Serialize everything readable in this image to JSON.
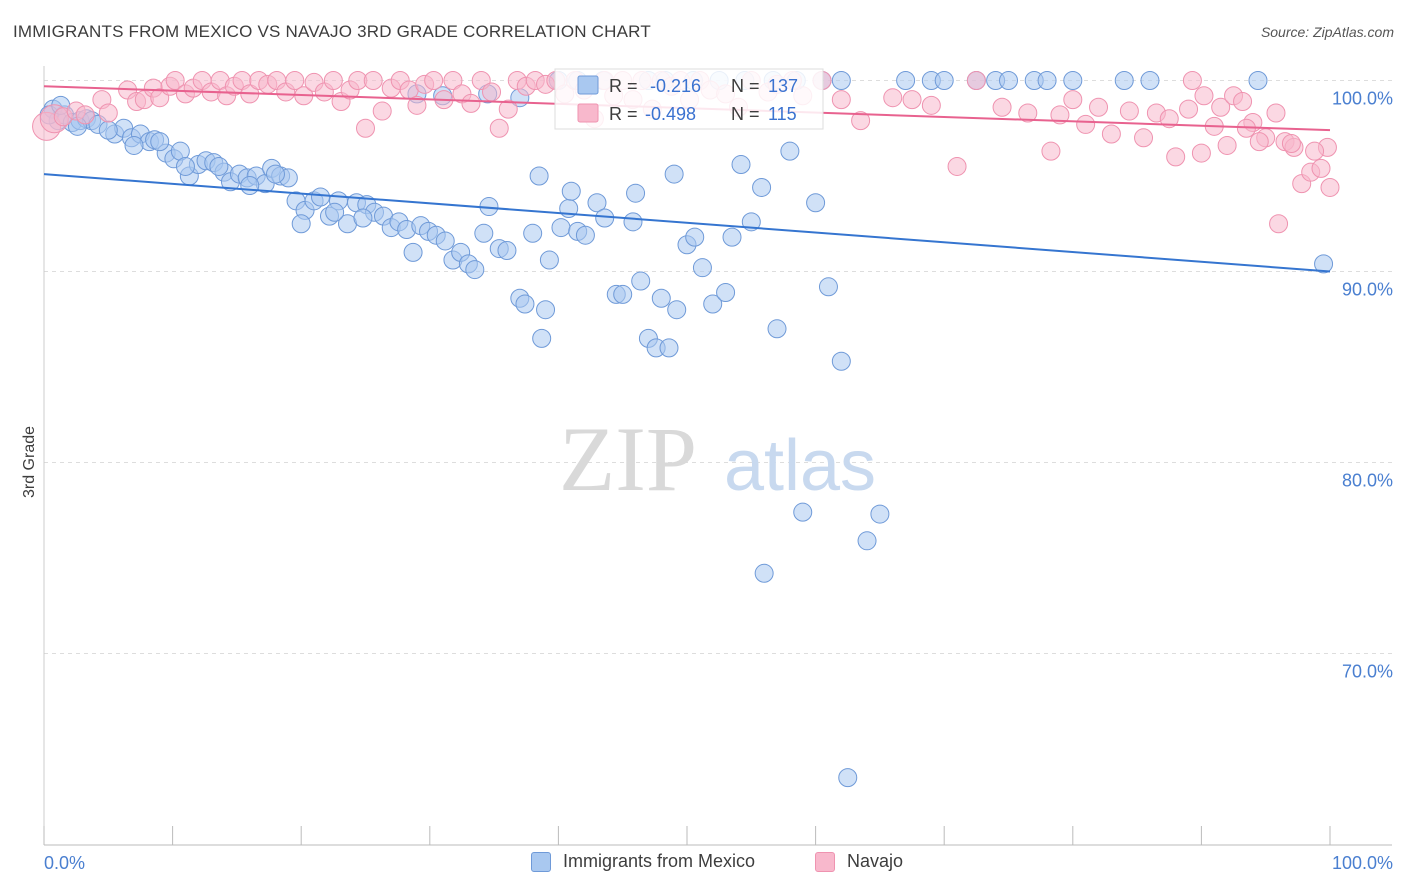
{
  "title": "IMMIGRANTS FROM MEXICO VS NAVAJO 3RD GRADE CORRELATION CHART",
  "source": "Source: ZipAtlas.com",
  "watermark": {
    "zip": "ZIP",
    "atlas": "atlas"
  },
  "colors": {
    "blue_fill": "#a9c8f0",
    "blue_stroke": "#6f9ad8",
    "blue_line": "#3575d0",
    "pink_fill": "#f8b8cc",
    "pink_stroke": "#ef93b0",
    "pink_line": "#e8628f",
    "axis_label": "#4a7fd0",
    "grid": "#dddddd"
  },
  "stats": {
    "series1": {
      "r_label": "R =",
      "r_value": "-0.216",
      "n_label": "N =",
      "n_value": "137"
    },
    "series2": {
      "r_label": "R =",
      "r_value": "-0.498",
      "n_label": "N =",
      "n_value": "115"
    }
  },
  "legend": {
    "series1": "Immigrants from Mexico",
    "series2": "Navajo"
  },
  "chart_data": {
    "type": "scatter",
    "title": "IMMIGRANTS FROM MEXICO VS NAVAJO 3RD GRADE CORRELATION CHART",
    "xlabel": "",
    "ylabel": "3rd Grade",
    "xlim": [
      0,
      100
    ],
    "ylim": [
      61.5,
      102.2
    ],
    "x_tick_labels": [
      {
        "value": 0,
        "label": "0.0%"
      },
      {
        "value": 100,
        "label": "100.0%"
      }
    ],
    "y_ticks": [
      {
        "value": 100,
        "label": "100.0%"
      },
      {
        "value": 90,
        "label": "90.0%"
      },
      {
        "value": 80,
        "label": "80.0%"
      },
      {
        "value": 70,
        "label": "70.0%"
      }
    ],
    "grid": "horizontal dashed",
    "legend_position": "bottom-center",
    "series": [
      {
        "name": "Immigrants from Mexico",
        "trend": {
          "x": [
            0,
            100
          ],
          "y": [
            95.1,
            90.0
          ]
        },
        "points": [
          [
            0.7,
            98.5
          ],
          [
            1.1,
            97.9
          ],
          [
            1.6,
            98.2
          ],
          [
            2.2,
            97.8
          ],
          [
            2.8,
            97.9
          ],
          [
            3.3,
            98.0
          ],
          [
            3.7,
            97.9
          ],
          [
            4.2,
            97.7
          ],
          [
            5.5,
            97.2
          ],
          [
            6.2,
            97.5
          ],
          [
            6.8,
            97.0
          ],
          [
            7.5,
            97.2
          ],
          [
            8.2,
            96.8
          ],
          [
            8.6,
            96.9
          ],
          [
            9.5,
            96.2
          ],
          [
            10.1,
            95.9
          ],
          [
            10.6,
            96.3
          ],
          [
            11.3,
            95.0
          ],
          [
            12.0,
            95.6
          ],
          [
            12.6,
            95.8
          ],
          [
            13.2,
            95.7
          ],
          [
            14.0,
            95.2
          ],
          [
            14.5,
            94.7
          ],
          [
            15.2,
            95.1
          ],
          [
            15.8,
            94.9
          ],
          [
            16.5,
            95.0
          ],
          [
            17.2,
            94.6
          ],
          [
            17.7,
            95.4
          ],
          [
            18.4,
            95.0
          ],
          [
            19.0,
            94.9
          ],
          [
            19.6,
            93.7
          ],
          [
            20.3,
            93.2
          ],
          [
            21.0,
            93.7
          ],
          [
            21.5,
            93.9
          ],
          [
            22.2,
            92.9
          ],
          [
            22.9,
            93.7
          ],
          [
            23.6,
            92.5
          ],
          [
            24.3,
            93.6
          ],
          [
            25.1,
            93.5
          ],
          [
            25.7,
            93.1
          ],
          [
            26.4,
            92.9
          ],
          [
            27.0,
            92.3
          ],
          [
            27.6,
            92.6
          ],
          [
            28.2,
            92.2
          ],
          [
            28.7,
            91.0
          ],
          [
            29.3,
            92.4
          ],
          [
            29.9,
            92.1
          ],
          [
            30.5,
            91.9
          ],
          [
            31.2,
            91.6
          ],
          [
            31.8,
            90.6
          ],
          [
            32.4,
            91.0
          ],
          [
            33.0,
            90.4
          ],
          [
            33.5,
            90.1
          ],
          [
            34.2,
            92.0
          ],
          [
            34.6,
            93.4
          ],
          [
            35.4,
            91.2
          ],
          [
            36.0,
            91.1
          ],
          [
            37.0,
            88.6
          ],
          [
            37.4,
            88.3
          ],
          [
            38.0,
            92.0
          ],
          [
            38.7,
            86.5
          ],
          [
            39.3,
            90.6
          ],
          [
            40.2,
            92.3
          ],
          [
            40.8,
            93.3
          ],
          [
            41.5,
            92.1
          ],
          [
            42.1,
            91.9
          ],
          [
            43.0,
            93.6
          ],
          [
            43.6,
            92.8
          ],
          [
            44.5,
            88.8
          ],
          [
            45.0,
            88.8
          ],
          [
            45.8,
            92.6
          ],
          [
            46.4,
            89.5
          ],
          [
            47.0,
            86.5
          ],
          [
            47.6,
            86.0
          ],
          [
            48.0,
            88.6
          ],
          [
            49.0,
            95.1
          ],
          [
            50.0,
            91.4
          ],
          [
            50.6,
            91.8
          ],
          [
            51.2,
            90.2
          ],
          [
            52.0,
            88.3
          ],
          [
            53.0,
            88.9
          ],
          [
            53.5,
            91.8
          ],
          [
            54.2,
            95.6
          ],
          [
            55.0,
            92.6
          ],
          [
            55.8,
            94.4
          ],
          [
            57.0,
            87.0
          ],
          [
            56.0,
            74.2
          ],
          [
            59.0,
            77.4
          ],
          [
            61.0,
            89.2
          ],
          [
            62.0,
            85.3
          ],
          [
            62.5,
            63.5
          ],
          [
            64.0,
            75.9
          ],
          [
            65.0,
            77.3
          ],
          [
            39.0,
            88.0
          ],
          [
            48.6,
            86.0
          ],
          [
            38.5,
            95.0
          ],
          [
            41.0,
            94.2
          ],
          [
            46.0,
            94.1
          ],
          [
            49.2,
            88.0
          ],
          [
            58.0,
            96.3
          ],
          [
            60.0,
            93.6
          ],
          [
            29.0,
            99.3
          ],
          [
            31.0,
            99.2
          ],
          [
            34.5,
            99.3
          ],
          [
            37.0,
            99.1
          ],
          [
            40.0,
            100.0
          ],
          [
            41.5,
            100.0
          ],
          [
            43.5,
            100.0
          ],
          [
            47.0,
            100.0
          ],
          [
            48.3,
            100.0
          ],
          [
            50.5,
            100.0
          ],
          [
            52.5,
            100.0
          ],
          [
            54.5,
            100.0
          ],
          [
            56.7,
            100.0
          ],
          [
            58.5,
            100.0
          ],
          [
            60.5,
            100.0
          ],
          [
            62.0,
            100.0
          ],
          [
            67.0,
            100.0
          ],
          [
            69.0,
            100.0
          ],
          [
            70.0,
            100.0
          ],
          [
            72.5,
            100.0
          ],
          [
            74.0,
            100.0
          ],
          [
            75.0,
            100.0
          ],
          [
            77.0,
            100.0
          ],
          [
            78.0,
            100.0
          ],
          [
            80.0,
            100.0
          ],
          [
            84.0,
            100.0
          ],
          [
            86.0,
            100.0
          ],
          [
            94.4,
            100.0
          ],
          [
            99.5,
            90.4
          ],
          [
            0.4,
            98.2
          ],
          [
            1.3,
            98.7
          ],
          [
            2.6,
            97.6
          ],
          [
            5.0,
            97.4
          ],
          [
            7.0,
            96.6
          ],
          [
            9.0,
            96.8
          ],
          [
            11.0,
            95.5
          ],
          [
            13.6,
            95.5
          ],
          [
            16.0,
            94.5
          ],
          [
            18.0,
            95.1
          ],
          [
            20.0,
            92.5
          ],
          [
            22.6,
            93.1
          ],
          [
            24.8,
            92.8
          ]
        ]
      },
      {
        "name": "Navajo",
        "trend": {
          "x": [
            0,
            100
          ],
          "y": [
            99.7,
            97.4
          ]
        },
        "points": [
          [
            0.2,
            97.6
          ],
          [
            0.8,
            98.0
          ],
          [
            1.5,
            98.1
          ],
          [
            2.5,
            98.4
          ],
          [
            3.2,
            98.2
          ],
          [
            4.5,
            99.0
          ],
          [
            5.0,
            98.3
          ],
          [
            6.5,
            99.5
          ],
          [
            7.2,
            98.9
          ],
          [
            7.8,
            99.0
          ],
          [
            8.5,
            99.6
          ],
          [
            9.0,
            99.1
          ],
          [
            9.8,
            99.7
          ],
          [
            10.2,
            100.0
          ],
          [
            11.0,
            99.3
          ],
          [
            11.6,
            99.6
          ],
          [
            12.3,
            100.0
          ],
          [
            13.0,
            99.4
          ],
          [
            13.7,
            100.0
          ],
          [
            14.2,
            99.2
          ],
          [
            14.8,
            99.7
          ],
          [
            15.4,
            100.0
          ],
          [
            16.0,
            99.3
          ],
          [
            16.7,
            100.0
          ],
          [
            17.4,
            99.8
          ],
          [
            18.1,
            100.0
          ],
          [
            18.8,
            99.4
          ],
          [
            19.5,
            100.0
          ],
          [
            20.2,
            99.2
          ],
          [
            21.0,
            99.9
          ],
          [
            21.8,
            99.4
          ],
          [
            22.5,
            100.0
          ],
          [
            23.1,
            98.9
          ],
          [
            23.8,
            99.5
          ],
          [
            24.4,
            100.0
          ],
          [
            25.0,
            97.5
          ],
          [
            25.6,
            100.0
          ],
          [
            26.3,
            98.4
          ],
          [
            27.0,
            99.6
          ],
          [
            27.7,
            100.0
          ],
          [
            28.4,
            99.5
          ],
          [
            29.0,
            98.7
          ],
          [
            29.6,
            99.8
          ],
          [
            30.3,
            100.0
          ],
          [
            31.1,
            99.0
          ],
          [
            31.8,
            100.0
          ],
          [
            32.5,
            99.3
          ],
          [
            33.2,
            98.8
          ],
          [
            34.0,
            100.0
          ],
          [
            34.8,
            99.4
          ],
          [
            35.4,
            97.5
          ],
          [
            36.1,
            98.5
          ],
          [
            36.8,
            100.0
          ],
          [
            37.5,
            99.7
          ],
          [
            38.2,
            100.0
          ],
          [
            39.0,
            99.8
          ],
          [
            39.8,
            100.0
          ],
          [
            40.5,
            99.3
          ],
          [
            41.3,
            100.0
          ],
          [
            42.0,
            99.5
          ],
          [
            42.8,
            98.0
          ],
          [
            43.6,
            100.0
          ],
          [
            44.3,
            99.2
          ],
          [
            45.0,
            100.0
          ],
          [
            45.8,
            99.0
          ],
          [
            46.5,
            100.0
          ],
          [
            47.3,
            98.5
          ],
          [
            48.0,
            100.0
          ],
          [
            48.8,
            99.7
          ],
          [
            49.5,
            100.0
          ],
          [
            50.2,
            99.0
          ],
          [
            51.0,
            100.0
          ],
          [
            51.8,
            99.5
          ],
          [
            53.0,
            99.3
          ],
          [
            54.0,
            98.6
          ],
          [
            55.0,
            100.0
          ],
          [
            56.3,
            99.4
          ],
          [
            57.0,
            99.8
          ],
          [
            58.2,
            100.0
          ],
          [
            59.0,
            99.2
          ],
          [
            60.5,
            100.0
          ],
          [
            62.0,
            99.0
          ],
          [
            63.5,
            97.9
          ],
          [
            66.0,
            99.1
          ],
          [
            67.5,
            99.0
          ],
          [
            69.0,
            98.7
          ],
          [
            71.0,
            95.5
          ],
          [
            72.5,
            100.0
          ],
          [
            74.5,
            98.6
          ],
          [
            76.5,
            98.3
          ],
          [
            78.3,
            96.3
          ],
          [
            80.0,
            99.0
          ],
          [
            82.0,
            98.6
          ],
          [
            84.4,
            98.4
          ],
          [
            85.5,
            97.0
          ],
          [
            86.5,
            98.3
          ],
          [
            88.0,
            96.0
          ],
          [
            89.3,
            100.0
          ],
          [
            90.2,
            99.2
          ],
          [
            91.5,
            98.6
          ],
          [
            92.5,
            99.2
          ],
          [
            93.2,
            98.9
          ],
          [
            94.0,
            97.8
          ],
          [
            95.0,
            97.0
          ],
          [
            95.8,
            98.3
          ],
          [
            96.5,
            96.8
          ],
          [
            97.2,
            96.5
          ],
          [
            97.8,
            94.6
          ],
          [
            98.5,
            95.2
          ],
          [
            99.3,
            95.4
          ],
          [
            99.8,
            96.5
          ],
          [
            100.0,
            94.4
          ],
          [
            96.0,
            92.5
          ],
          [
            93.5,
            97.5
          ],
          [
            91.0,
            97.6
          ],
          [
            92.0,
            96.6
          ],
          [
            90.0,
            96.2
          ],
          [
            97.0,
            96.7
          ],
          [
            98.8,
            96.3
          ],
          [
            94.5,
            96.8
          ],
          [
            89.0,
            98.5
          ],
          [
            87.5,
            98.0
          ],
          [
            83.0,
            97.2
          ],
          [
            81.0,
            97.7
          ],
          [
            79.0,
            98.2
          ]
        ]
      }
    ]
  }
}
